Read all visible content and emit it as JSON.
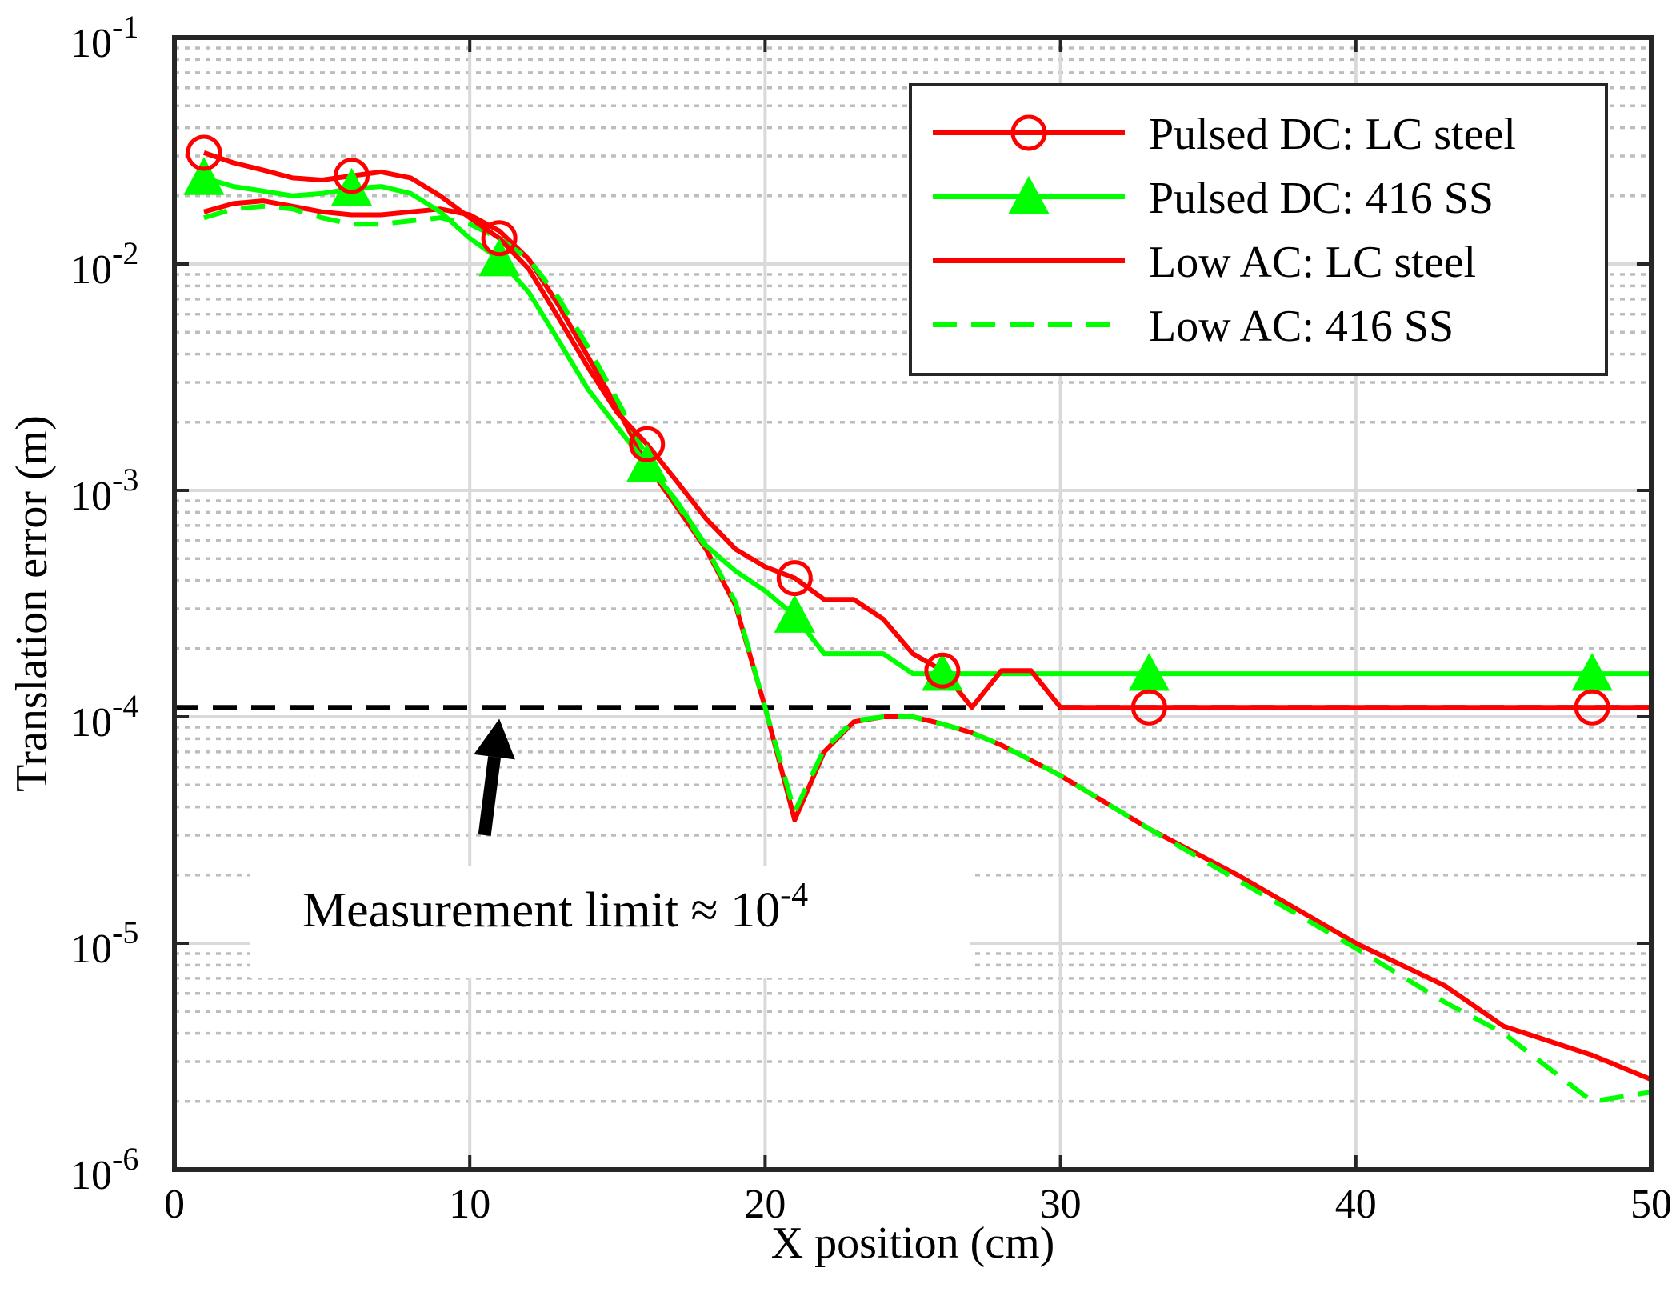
{
  "chart_data": {
    "type": "line",
    "title": "",
    "xlabel": "X position (cm)",
    "ylabel": "Translation error (m)",
    "xlim": [
      0,
      50
    ],
    "ylim": [
      1e-06,
      0.1
    ],
    "yscale": "log",
    "grid": true,
    "minor_grid": true,
    "legend_position": "top-right",
    "x_ticks": [
      {
        "value": 0,
        "label": "0"
      },
      {
        "value": 10,
        "label": "10"
      },
      {
        "value": 20,
        "label": "20"
      },
      {
        "value": 30,
        "label": "30"
      },
      {
        "value": 40,
        "label": "40"
      },
      {
        "value": 50,
        "label": "50"
      }
    ],
    "y_ticks": [
      {
        "value": 1e-06,
        "base": "10",
        "exp": "-6"
      },
      {
        "value": 1e-05,
        "base": "10",
        "exp": "-5"
      },
      {
        "value": 0.0001,
        "base": "10",
        "exp": "-4"
      },
      {
        "value": 0.001,
        "base": "10",
        "exp": "-3"
      },
      {
        "value": 0.01,
        "base": "10",
        "exp": "-2"
      },
      {
        "value": 0.1,
        "base": "10",
        "exp": "-1"
      }
    ],
    "series": [
      {
        "name": "Pulsed DC: LC steel",
        "color": "#ff0000",
        "line_style": "solid",
        "marker": "circle",
        "x": [
          1,
          2,
          3,
          4,
          5,
          6,
          7,
          8,
          9,
          10,
          11,
          12,
          13,
          14,
          15,
          16,
          17,
          18,
          19,
          20,
          21,
          22,
          23,
          24,
          25,
          26,
          27,
          28,
          29,
          30,
          33,
          40,
          48,
          50
        ],
        "y": [
          0.031,
          0.028,
          0.026,
          0.024,
          0.0235,
          0.0245,
          0.0255,
          0.024,
          0.02,
          0.016,
          0.013,
          0.0095,
          0.0058,
          0.0035,
          0.0022,
          0.0016,
          0.0011,
          0.00075,
          0.00055,
          0.00046,
          0.00041,
          0.00033,
          0.00033,
          0.00027,
          0.00019,
          0.00016,
          0.00011,
          0.00016,
          0.00016,
          0.00011,
          0.00011,
          0.00011,
          0.00011,
          0.00011
        ],
        "marker_x": [
          1,
          6,
          11,
          16,
          21,
          26,
          33,
          48
        ]
      },
      {
        "name": "Pulsed DC: 416 SS",
        "color": "#00ff00",
        "line_style": "solid",
        "marker": "triangle",
        "x": [
          1,
          2,
          3,
          4,
          5,
          6,
          7,
          8,
          9,
          10,
          11,
          12,
          13,
          14,
          15,
          16,
          17,
          18,
          19,
          20,
          21,
          22,
          23,
          24,
          25,
          26,
          30,
          33,
          40,
          48,
          50
        ],
        "y": [
          0.024,
          0.022,
          0.021,
          0.02,
          0.0205,
          0.0215,
          0.022,
          0.0205,
          0.017,
          0.013,
          0.0105,
          0.0075,
          0.0046,
          0.0028,
          0.0019,
          0.0013,
          0.0009,
          0.00057,
          0.00044,
          0.00036,
          0.00028,
          0.00019,
          0.00019,
          0.00019,
          0.000155,
          0.000155,
          0.000155,
          0.000155,
          0.000155,
          0.000155,
          0.000155
        ],
        "marker_x": [
          1,
          6,
          11,
          16,
          21,
          26,
          33,
          48
        ]
      },
      {
        "name": "Low AC: LC steel",
        "color": "#ff0000",
        "line_style": "solid",
        "marker": "none",
        "x": [
          1,
          2,
          3,
          4,
          5,
          6,
          7,
          8,
          9,
          10,
          11,
          12,
          13,
          14,
          15,
          16,
          17,
          18,
          19,
          20,
          21,
          22,
          23,
          24,
          25,
          26,
          27,
          28,
          30,
          33,
          36,
          40,
          43,
          45,
          48,
          50
        ],
        "y": [
          0.017,
          0.0185,
          0.019,
          0.018,
          0.017,
          0.0165,
          0.0165,
          0.017,
          0.0175,
          0.0165,
          0.014,
          0.0105,
          0.0066,
          0.0039,
          0.0023,
          0.0013,
          0.00085,
          0.00055,
          0.00031,
          0.00011,
          3.5e-05,
          7e-05,
          9.5e-05,
          0.0001,
          0.0001,
          9.3e-05,
          8.5e-05,
          7.5e-05,
          5.5e-05,
          3.2e-05,
          2e-05,
          1e-05,
          6.5e-06,
          4.3e-06,
          3.2e-06,
          2.5e-06
        ]
      },
      {
        "name": "Low AC: 416 SS",
        "color": "#00ff00",
        "line_style": "dashed",
        "marker": "none",
        "x": [
          1,
          2,
          3,
          4,
          5,
          6,
          7,
          8,
          9,
          10,
          11,
          12,
          13,
          14,
          15,
          16,
          17,
          18,
          19,
          20,
          21,
          22,
          23,
          24,
          25,
          26,
          27,
          28,
          30,
          33,
          36,
          40,
          43,
          45,
          48,
          50
        ],
        "y": [
          0.016,
          0.0175,
          0.018,
          0.0175,
          0.016,
          0.015,
          0.015,
          0.0155,
          0.016,
          0.015,
          0.013,
          0.0105,
          0.0071,
          0.0043,
          0.0025,
          0.0014,
          0.00088,
          0.00056,
          0.00032,
          0.00011,
          3.8e-05,
          7.2e-05,
          9.6e-05,
          0.0001,
          0.0001,
          9.3e-05,
          8.5e-05,
          7.5e-05,
          5.5e-05,
          3.2e-05,
          1.9e-05,
          9.5e-06,
          5.5e-06,
          4e-06,
          2e-06,
          2.2e-06
        ]
      }
    ],
    "reference_line": {
      "y": 0.00011,
      "color": "#000000",
      "line_style": "dashed"
    },
    "annotation": {
      "text_main": "Measurement limit ≈ 10",
      "text_exp": "-4",
      "arrow_from": [
        10.5,
        3e-05
      ],
      "arrow_to": [
        11,
        9.8e-05
      ]
    }
  }
}
